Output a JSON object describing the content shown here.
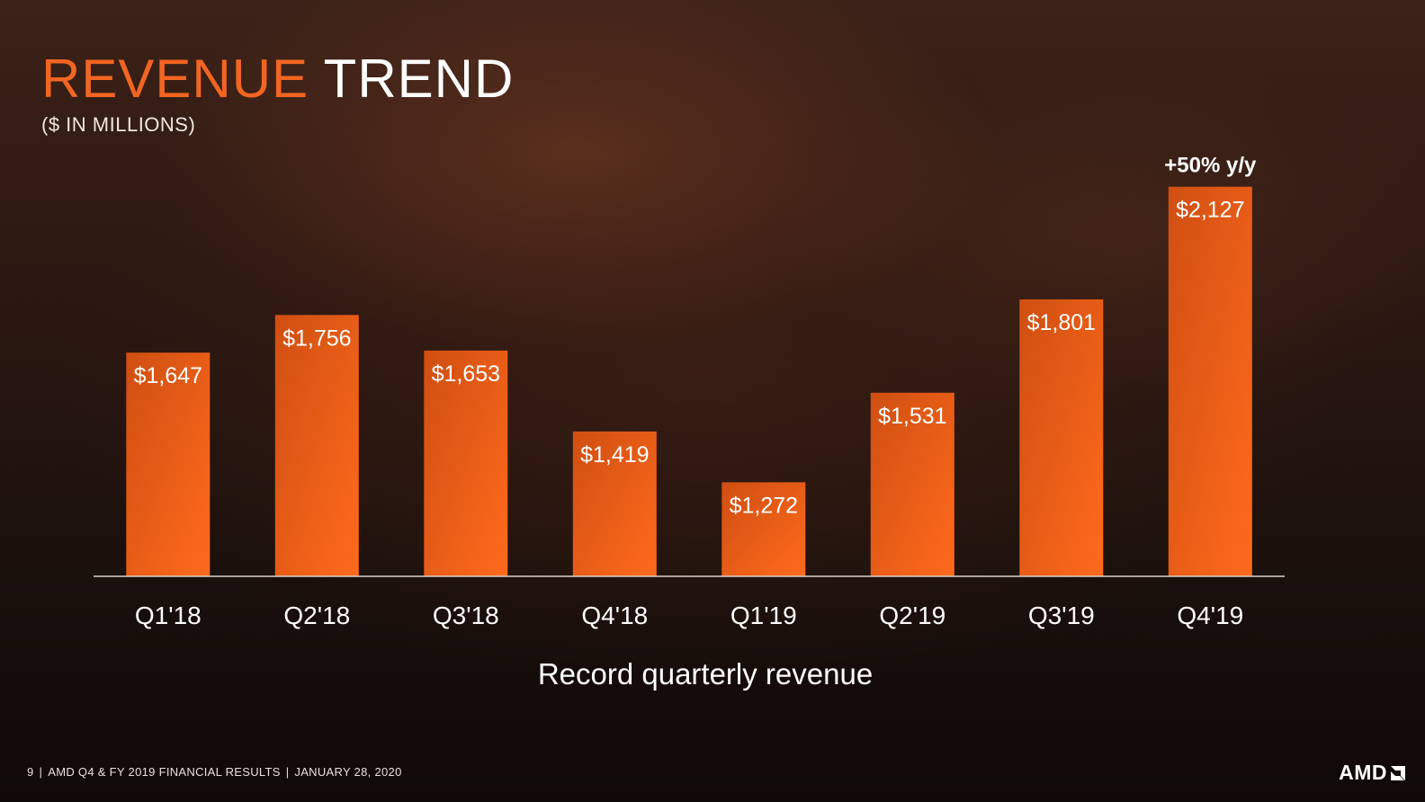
{
  "header": {
    "title_accent": "REVENUE",
    "title_rest": "TREND",
    "subtitle": "($ IN MILLIONS)"
  },
  "footer": {
    "page_number": "9",
    "doc_title": "AMD Q4 & FY 2019 FINANCIAL RESULTS",
    "date": "JANUARY 28, 2020"
  },
  "logo": {
    "text": "AMD"
  },
  "colors": {
    "accent": "#f26522",
    "bar_top": "#e05a14",
    "bar_bottom": "#ff6a1c",
    "axis": "#d9d2cc",
    "text": "#ffffff"
  },
  "chart_data": {
    "type": "bar",
    "categories": [
      "Q1'18",
      "Q2'18",
      "Q3'18",
      "Q4'18",
      "Q1'19",
      "Q2'19",
      "Q3'19",
      "Q4'19"
    ],
    "values": [
      1647,
      1756,
      1653,
      1419,
      1272,
      1531,
      1801,
      2127
    ],
    "data_labels": [
      "$1,647",
      "$1,756",
      "$1,653",
      "$1,419",
      "$1,272",
      "$1,531",
      "$1,801",
      "$2,127"
    ],
    "ylim": [
      1000,
      2160
    ],
    "annotation": {
      "text": "+50% y/y",
      "category": "Q4'19"
    },
    "xlabel": "Record quarterly revenue",
    "grid": false
  }
}
